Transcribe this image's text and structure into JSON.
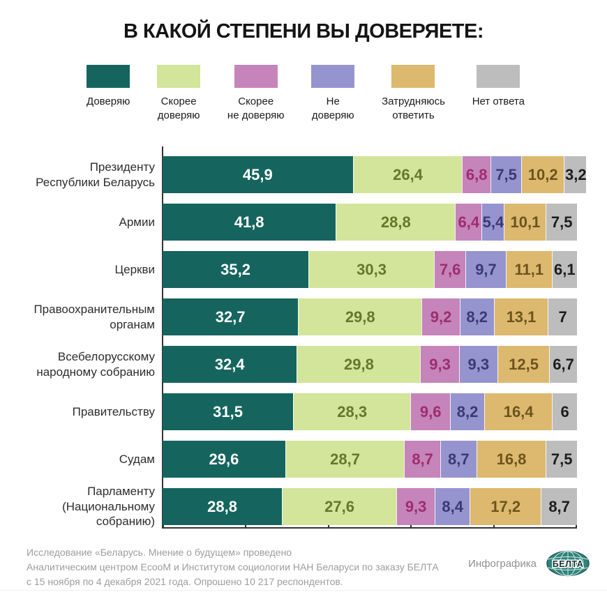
{
  "title": "В КАКОЙ СТЕПЕНИ ВЫ ДОВЕРЯЕТЕ:",
  "legend": {
    "items": [
      {
        "label": "Доверяю",
        "color": "#15655e",
        "value_color": "#ffffff"
      },
      {
        "label": "Скорее\nдоверяю",
        "color": "#d3e59a",
        "value_color": "#67762a"
      },
      {
        "label": "Скорее\nне доверяю",
        "color": "#c584ba",
        "value_color": "#9e2d6c"
      },
      {
        "label": "Не\nдоверяю",
        "color": "#9694ce",
        "value_color": "#3a3a73"
      },
      {
        "label": "Затрудняюсь\nответить",
        "color": "#dcb96e",
        "value_color": "#6e531d"
      },
      {
        "label": "Нет ответа",
        "color": "#bdbdbd",
        "value_color": "#1d1d1d"
      }
    ]
  },
  "chart_data": {
    "type": "bar",
    "orientation": "horizontal",
    "stacked": true,
    "grid": false,
    "value_format": "decimal-comma",
    "x_axis": {
      "min": 0,
      "max": 100,
      "tick_step": 20
    },
    "categories": [
      "Президенту\nРеспублики Беларусь",
      "Армии",
      "Церкви",
      "Правоохранительным\nорганам",
      "Всебелорусскому\nнародному собранию",
      "Правительству",
      "Судам",
      "Парламенту\n(Национальному\nсобранию)"
    ],
    "series": [
      {
        "name": "Доверяю",
        "values": [
          45.9,
          41.8,
          35.2,
          32.7,
          32.4,
          31.5,
          29.6,
          28.8
        ]
      },
      {
        "name": "Скорее доверяю",
        "values": [
          26.4,
          28.8,
          30.3,
          29.8,
          29.8,
          28.3,
          28.7,
          27.6
        ]
      },
      {
        "name": "Скорее не доверяю",
        "values": [
          6.8,
          6.4,
          7.6,
          9.2,
          9.3,
          9.6,
          8.7,
          9.3
        ]
      },
      {
        "name": "Не доверяю",
        "values": [
          7.5,
          5.4,
          9.7,
          8.2,
          9.3,
          8.2,
          8.7,
          8.4
        ]
      },
      {
        "name": "Затрудняюсь ответить",
        "values": [
          10.2,
          10.1,
          11.1,
          13.1,
          12.5,
          16.4,
          16.8,
          17.2
        ]
      },
      {
        "name": "Нет ответа",
        "values": [
          3.2,
          7.5,
          6.1,
          7,
          6.7,
          6,
          7.5,
          8.7
        ]
      }
    ]
  },
  "footer": {
    "lines": [
      "Исследование «Беларусь. Мнение о будущем» проведено",
      "Аналитическим центром EcooM и Институтом социологии НАН Беларуси по заказу БЕЛТА",
      "с 15 ноября по 4 декабря 2021 года. Опрошено 10 217 респондентов."
    ],
    "credit": "Инфографика",
    "logo": "БЕЛТА"
  }
}
